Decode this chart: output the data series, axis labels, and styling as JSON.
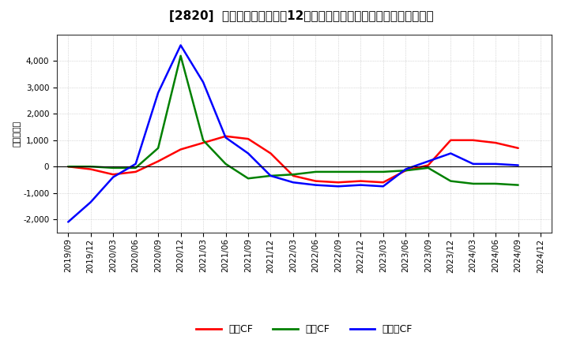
{
  "title": "[2820]  キャッシュフローの12か月移動合計の対前年同期増減額の推移",
  "ylabel": "（百万円）",
  "x_labels": [
    "2019/09",
    "2019/12",
    "2020/03",
    "2020/06",
    "2020/09",
    "2020/12",
    "2021/03",
    "2021/06",
    "2021/09",
    "2021/12",
    "2022/03",
    "2022/06",
    "2022/09",
    "2022/12",
    "2023/03",
    "2023/06",
    "2023/09",
    "2023/12",
    "2024/03",
    "2024/06",
    "2024/09",
    "2024/12"
  ],
  "series": {
    "営業CF": {
      "color": "#ff0000",
      "values": [
        0,
        -100,
        -300,
        -200,
        200,
        650,
        900,
        1150,
        1050,
        500,
        -350,
        -550,
        -600,
        -550,
        -600,
        -150,
        50,
        1000,
        1000,
        900,
        700,
        null
      ]
    },
    "投資CF": {
      "color": "#008000",
      "values": [
        0,
        0,
        -50,
        -50,
        700,
        4200,
        1000,
        100,
        -450,
        -350,
        -300,
        -200,
        -200,
        -200,
        -200,
        -150,
        -50,
        -550,
        -650,
        -650,
        -700,
        null
      ]
    },
    "フリーCF": {
      "color": "#0000ff",
      "values": [
        -2100,
        -1350,
        -400,
        100,
        2800,
        4600,
        3200,
        1100,
        500,
        -350,
        -600,
        -700,
        -750,
        -700,
        -750,
        -100,
        200,
        500,
        100,
        100,
        50,
        null
      ]
    }
  },
  "ylim": [
    -2500,
    5000
  ],
  "yticks": [
    -2000,
    -1000,
    0,
    1000,
    2000,
    3000,
    4000
  ],
  "legend_entries": [
    "営業CF",
    "投資CF",
    "フリーCF"
  ],
  "legend_colors": [
    "#ff0000",
    "#008000",
    "#0000ff"
  ],
  "bg_color": "#ffffff",
  "plot_bg_color": "#ffffff",
  "grid_color": "#bbbbbb",
  "title_fontsize": 11,
  "tick_fontsize": 7.5,
  "ylabel_fontsize": 8,
  "legend_fontsize": 9,
  "line_width": 1.8
}
